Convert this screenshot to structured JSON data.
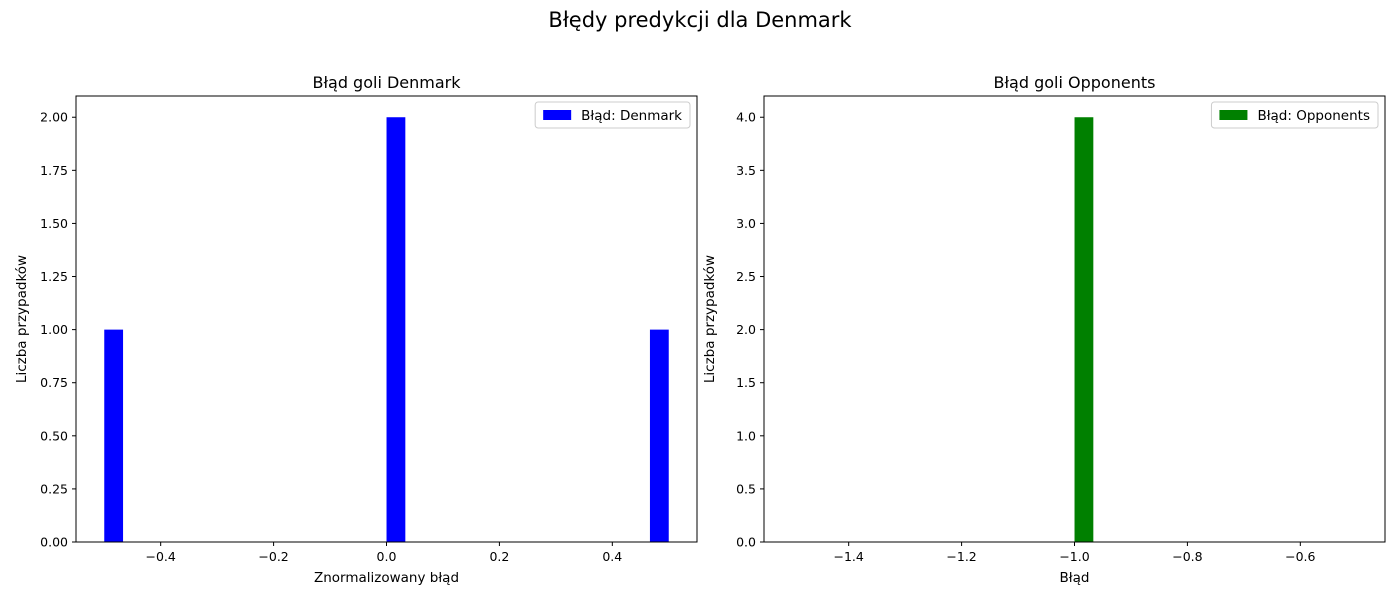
{
  "suptitle": "Błędy predykcji dla Denmark",
  "chart_data": [
    {
      "type": "bar",
      "title": "Błąd goli Denmark",
      "xlabel": "Znormalizowany błąd",
      "ylabel": "Liczba przypadków",
      "xlim": [
        -0.55,
        0.55
      ],
      "ylim": [
        0,
        2.1
      ],
      "bin_width": 0.0333,
      "bars": [
        {
          "x": -0.4833,
          "value": 1
        },
        {
          "x": 0.0167,
          "value": 2
        },
        {
          "x": 0.4833,
          "value": 1
        }
      ],
      "xticks": [
        {
          "value": -0.4,
          "label": "−0.4"
        },
        {
          "value": -0.2,
          "label": "−0.2"
        },
        {
          "value": 0.0,
          "label": "0.0"
        },
        {
          "value": 0.2,
          "label": "0.2"
        },
        {
          "value": 0.4,
          "label": "0.4"
        }
      ],
      "yticks": [
        {
          "value": 0.0,
          "label": "0.00"
        },
        {
          "value": 0.25,
          "label": "0.25"
        },
        {
          "value": 0.5,
          "label": "0.50"
        },
        {
          "value": 0.75,
          "label": "0.75"
        },
        {
          "value": 1.0,
          "label": "1.00"
        },
        {
          "value": 1.25,
          "label": "1.25"
        },
        {
          "value": 1.5,
          "label": "1.50"
        },
        {
          "value": 1.75,
          "label": "1.75"
        },
        {
          "value": 2.0,
          "label": "2.00"
        }
      ],
      "legend": {
        "label": "Błąd: Denmark",
        "position": "top-right"
      },
      "color": "#0000ff",
      "grid": false
    },
    {
      "type": "bar",
      "title": "Błąd goli Opponents",
      "xlabel": "Błąd",
      "ylabel": "Liczba przypadków",
      "xlim": [
        -1.55,
        -0.45
      ],
      "ylim": [
        0,
        4.2
      ],
      "bin_width": 0.0333,
      "bars": [
        {
          "x": -0.9833,
          "value": 4
        }
      ],
      "xticks": [
        {
          "value": -1.4,
          "label": "−1.4"
        },
        {
          "value": -1.2,
          "label": "−1.2"
        },
        {
          "value": -1.0,
          "label": "−1.0"
        },
        {
          "value": -0.8,
          "label": "−0.8"
        },
        {
          "value": -0.6,
          "label": "−0.6"
        }
      ],
      "yticks": [
        {
          "value": 0.0,
          "label": "0.0"
        },
        {
          "value": 0.5,
          "label": "0.5"
        },
        {
          "value": 1.0,
          "label": "1.0"
        },
        {
          "value": 1.5,
          "label": "1.5"
        },
        {
          "value": 2.0,
          "label": "2.0"
        },
        {
          "value": 2.5,
          "label": "2.5"
        },
        {
          "value": 3.0,
          "label": "3.0"
        },
        {
          "value": 3.5,
          "label": "3.5"
        },
        {
          "value": 4.0,
          "label": "4.0"
        }
      ],
      "legend": {
        "label": "Błąd: Opponents",
        "position": "top-right"
      },
      "color": "#008000",
      "grid": false
    }
  ]
}
